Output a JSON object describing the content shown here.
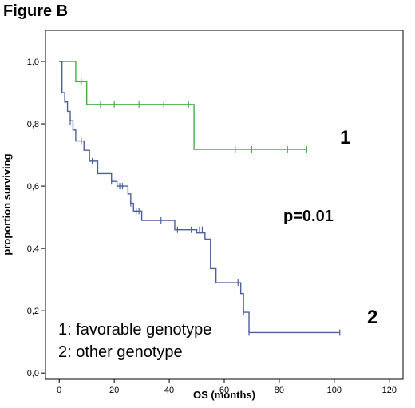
{
  "figure_title": "Figure B",
  "chart_data": {
    "type": "line",
    "xlabel": "OS (months)",
    "ylabel": "proportion surviving",
    "xlim": [
      -5,
      125
    ],
    "ylim": [
      -0.02,
      1.1
    ],
    "x_ticks": [
      0,
      20,
      40,
      60,
      80,
      100,
      120
    ],
    "y_ticks": [
      0.0,
      0.2,
      0.4,
      0.6,
      0.8,
      1.0
    ],
    "y_tick_labels": [
      "0,0",
      "0,2",
      "0,4",
      "0,6",
      "0,8",
      "1,0"
    ],
    "grid": false,
    "step": true,
    "series": [
      {
        "name": "1",
        "color": "#44b044",
        "steps": [
          [
            0,
            1.0
          ],
          [
            6,
            0.935
          ],
          [
            10,
            0.862
          ],
          [
            49,
            0.718
          ],
          [
            90,
            0.718
          ]
        ],
        "censored": [
          [
            8,
            0.935
          ],
          [
            15,
            0.862
          ],
          [
            20,
            0.862
          ],
          [
            29,
            0.862
          ],
          [
            38,
            0.862
          ],
          [
            47,
            0.862
          ],
          [
            64,
            0.718
          ],
          [
            70,
            0.718
          ],
          [
            83,
            0.718
          ],
          [
            90,
            0.718
          ]
        ]
      },
      {
        "name": "2",
        "color": "#4e5f9e",
        "steps": [
          [
            0,
            1.0
          ],
          [
            1,
            0.9
          ],
          [
            2,
            0.87
          ],
          [
            3,
            0.84
          ],
          [
            4,
            0.81
          ],
          [
            5,
            0.78
          ],
          [
            6,
            0.745
          ],
          [
            9,
            0.715
          ],
          [
            11,
            0.68
          ],
          [
            14,
            0.64
          ],
          [
            19,
            0.615
          ],
          [
            21,
            0.6
          ],
          [
            25,
            0.575
          ],
          [
            26,
            0.545
          ],
          [
            27,
            0.52
          ],
          [
            30,
            0.49
          ],
          [
            42,
            0.46
          ],
          [
            50,
            0.45
          ],
          [
            53,
            0.43
          ],
          [
            55,
            0.335
          ],
          [
            57,
            0.29
          ],
          [
            66,
            0.255
          ],
          [
            67,
            0.195
          ],
          [
            69,
            0.13
          ],
          [
            102,
            0.13
          ]
        ],
        "censored": [
          [
            4,
            0.805
          ],
          [
            8,
            0.745
          ],
          [
            12,
            0.68
          ],
          [
            19,
            0.615
          ],
          [
            21,
            0.6
          ],
          [
            22,
            0.6
          ],
          [
            23,
            0.6
          ],
          [
            26,
            0.545
          ],
          [
            28,
            0.52
          ],
          [
            29,
            0.52
          ],
          [
            37,
            0.49
          ],
          [
            43,
            0.46
          ],
          [
            48,
            0.46
          ],
          [
            51,
            0.46
          ],
          [
            52,
            0.46
          ],
          [
            65,
            0.29
          ],
          [
            67,
            0.195
          ],
          [
            69,
            0.13
          ],
          [
            102,
            0.13
          ]
        ]
      }
    ],
    "annotations": {
      "pvalue": "p=0.01",
      "group1_label": "1",
      "group2_label": "2",
      "legend_line1": "1: favorable genotype",
      "legend_line2": "2: other genotype"
    }
  }
}
